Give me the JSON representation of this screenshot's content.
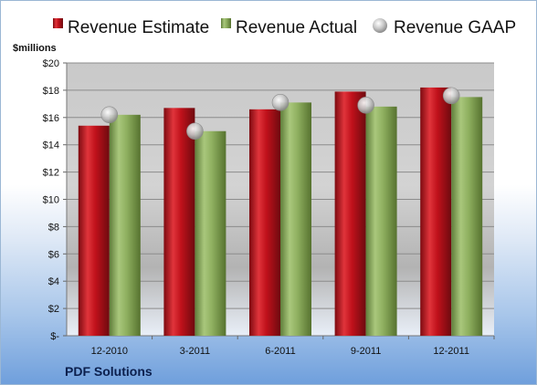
{
  "chart_data": {
    "type": "bar",
    "categories": [
      "12-2010",
      "3-2011",
      "6-2011",
      "9-2011",
      "12-2011"
    ],
    "series": [
      {
        "name": "Revenue Estimate",
        "kind": "bar",
        "values": [
          15.4,
          16.7,
          16.6,
          17.9,
          18.2
        ]
      },
      {
        "name": "Revenue Actual",
        "kind": "bar",
        "values": [
          16.2,
          15.0,
          17.1,
          16.8,
          17.5
        ]
      },
      {
        "name": "Revenue GAAP",
        "kind": "marker",
        "values": [
          16.2,
          15.0,
          17.1,
          16.9,
          17.6
        ]
      }
    ],
    "ylabel": "$millions",
    "ylim": [
      0,
      20
    ],
    "yticks": [
      0,
      2,
      4,
      6,
      8,
      10,
      12,
      14,
      16,
      18,
      20
    ],
    "ytick_labels": [
      "$-",
      "$2",
      "$4",
      "$6",
      "$8",
      "$10",
      "$12",
      "$14",
      "$16",
      "$18",
      "$20"
    ],
    "grid": true,
    "legend_position": "top",
    "company": "PDF Solutions",
    "colors": {
      "estimate": "#c0111b",
      "actual": "#8fb060",
      "gaap": "#c8c8c8"
    }
  }
}
